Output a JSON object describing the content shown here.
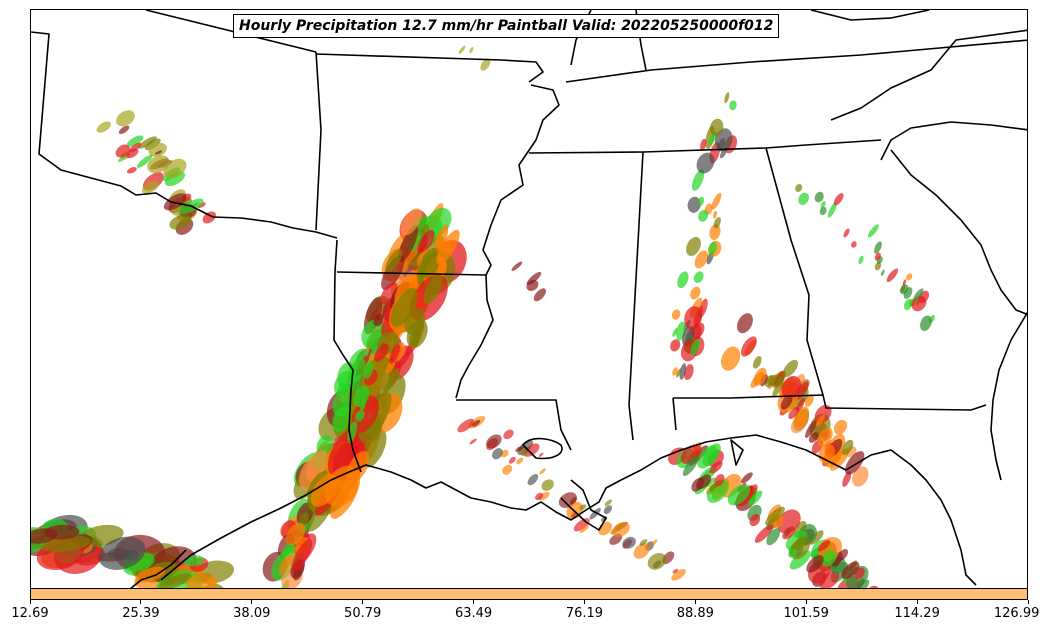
{
  "title": "Hourly Precipitation 12.7 mm/hr Paintball Valid: 202205250000f012",
  "colorbar": {
    "color": "#fdbf6f",
    "ticks": [
      "12.69",
      "25.39",
      "38.09",
      "50.79",
      "63.49",
      "76.19",
      "88.89",
      "101.59",
      "114.29",
      "126.99"
    ]
  },
  "palette": [
    "#7f7f00",
    "#e31a1c",
    "#ff7f00",
    "#22d622",
    "#8b1a1a",
    "#4d4d4d",
    "#b2df4a",
    "#a6a622",
    "#2e8b2e",
    "#fd8d3c"
  ],
  "map": {
    "region": "South-central and southeastern United States",
    "features": [
      "state boundaries",
      "Gulf of Mexico coastline"
    ]
  }
}
